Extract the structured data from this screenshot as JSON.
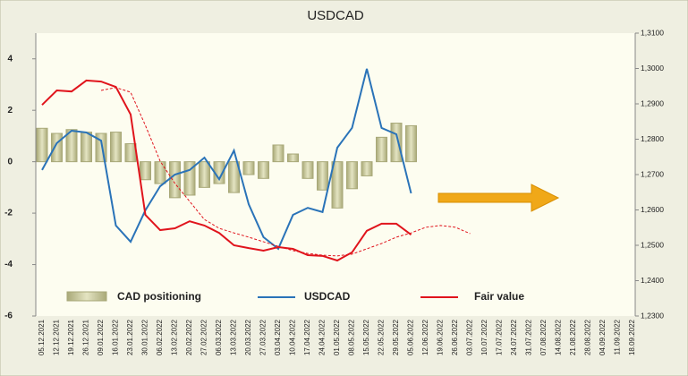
{
  "chart_data": {
    "type": "bar_line",
    "title": "USDCAD",
    "categories": [
      "05.12.2021",
      "12.12.2021",
      "19.12.2021",
      "26.12.2021",
      "09.01.2022",
      "16.01.2022",
      "23.01.2022",
      "30.01.2022",
      "06.02.2022",
      "13.02.2022",
      "20.02.2022",
      "27.02.2022",
      "06.03.2022",
      "13.03.2022",
      "20.03.2022",
      "27.03.2022",
      "03.04.2022",
      "10.04.2022",
      "17.04.2022",
      "24.04.2022",
      "01.05.2022",
      "08.05.2022",
      "15.05.2022",
      "22.05.2022",
      "29.05.2022",
      "05.06.2022",
      "12.06.2022",
      "19.06.2022",
      "26.06.2022",
      "03.07.2022",
      "10.07.2022",
      "17.07.2022",
      "24.07.2022",
      "31.07.2022",
      "07.08.2022",
      "14.08.2022",
      "21.08.2022",
      "28.08.2022",
      "04.09.2022",
      "11.09.2022",
      "18.09.2022"
    ],
    "series": [
      {
        "name": "CAD positioning",
        "kind": "bar",
        "axis": "y",
        "color": "#c9c99c",
        "values": [
          1.3,
          1.1,
          1.25,
          1.15,
          1.1,
          1.15,
          0.7,
          -0.7,
          -0.85,
          -1.4,
          -1.3,
          -1.0,
          -0.85,
          -1.2,
          -0.5,
          -0.65,
          0.65,
          0.3,
          -0.65,
          -1.1,
          -1.8,
          -1.05,
          -0.55,
          0.95,
          1.5,
          1.4,
          null,
          null,
          null,
          null,
          null,
          null,
          null,
          null,
          null,
          null,
          null,
          null,
          null,
          null,
          null
        ]
      },
      {
        "name": "USDCAD",
        "kind": "line",
        "axis": "y2",
        "color": "#2a73b8",
        "values": [
          1.2713,
          1.2789,
          1.2824,
          1.2819,
          1.2796,
          1.2556,
          1.251,
          1.2599,
          1.2667,
          1.27,
          1.2713,
          1.2748,
          1.2687,
          1.2768,
          1.2616,
          1.2523,
          1.249,
          1.2586,
          1.2606,
          1.2594,
          1.2776,
          1.2832,
          1.2999,
          1.2832,
          1.2814,
          1.2647,
          null,
          null,
          null,
          null,
          null,
          null,
          null,
          null,
          null,
          null,
          null,
          null,
          null,
          null,
          null
        ]
      },
      {
        "name": "Fair value",
        "kind": "line",
        "axis": "y2",
        "color": "#e0141c",
        "values": [
          1.2897,
          1.2938,
          1.2935,
          1.2966,
          1.2963,
          1.2948,
          1.287,
          1.2586,
          1.2543,
          1.2548,
          1.2568,
          1.2556,
          1.2535,
          1.25,
          1.2492,
          1.2485,
          1.2495,
          1.249,
          1.2472,
          1.247,
          1.2457,
          1.248,
          1.2541,
          1.2561,
          1.2561,
          1.253,
          null,
          null,
          null,
          null,
          null,
          null,
          null,
          null,
          null,
          null,
          null,
          null,
          null,
          null,
          null
        ]
      },
      {
        "kind": "dashed",
        "axis": "y2",
        "color": "#e0141c",
        "values": [
          null,
          null,
          null,
          null,
          1.2938,
          1.2946,
          1.2933,
          1.2839,
          1.2738,
          1.2675,
          1.2624,
          1.2573,
          1.2548,
          1.2535,
          1.2523,
          1.251,
          1.2497,
          1.2485,
          1.2477,
          1.2472,
          1.247,
          1.2475,
          1.249,
          1.2505,
          1.2523,
          1.2535,
          1.2551,
          1.2556,
          1.2551,
          1.2533,
          null,
          null,
          null,
          null,
          null,
          null,
          null,
          null,
          null,
          null,
          null
        ]
      }
    ],
    "ylim": [
      -6,
      5
    ],
    "yticks": [
      -6,
      -4,
      -2,
      0,
      2,
      4
    ],
    "y2lim": [
      1.23,
      1.31
    ],
    "y2ticks": [
      {
        "value": 1.23,
        "label": "1,2300"
      },
      {
        "value": 1.24,
        "label": "1,2400"
      },
      {
        "value": 1.25,
        "label": "1,2500"
      },
      {
        "value": 1.26,
        "label": "1,2600"
      },
      {
        "value": 1.27,
        "label": "1,2700"
      },
      {
        "value": 1.28,
        "label": "1,2800"
      },
      {
        "value": 1.29,
        "label": "1,2900"
      },
      {
        "value": 1.3,
        "label": "1,3000"
      },
      {
        "value": 1.31,
        "label": "1,3100"
      }
    ],
    "legend": "bottom"
  }
}
